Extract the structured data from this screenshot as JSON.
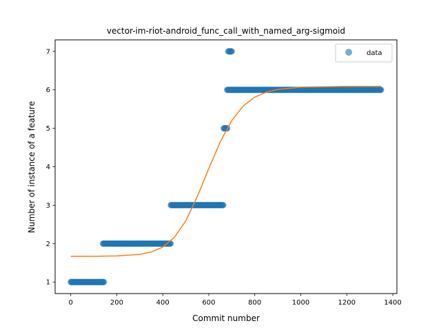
{
  "chart_data": {
    "type": "scatter",
    "title": "vector-im-riot-android_func_call_with_named_arg-sigmoid",
    "xlabel": "Commit number",
    "ylabel": "Number of instance of a feature",
    "xlim": [
      -68,
      1418
    ],
    "ylim": [
      0.7,
      7.3
    ],
    "xticks": [
      0,
      200,
      400,
      600,
      800,
      1000,
      1200,
      1400
    ],
    "yticks": [
      1,
      2,
      3,
      4,
      5,
      6,
      7
    ],
    "grid": false,
    "legend": {
      "position": "top-right",
      "entries": [
        "data"
      ]
    },
    "colors": {
      "data": "#1f77b4",
      "fit": "#ff7f0e"
    },
    "series": [
      {
        "name": "data",
        "kind": "points",
        "segments": [
          {
            "x_start": 0,
            "x_end": 145,
            "y": 1
          },
          {
            "x_start": 140,
            "x_end": 435,
            "y": 2
          },
          {
            "x_start": 435,
            "x_end": 665,
            "y": 3
          },
          {
            "x_start": 665,
            "x_end": 680,
            "y": 5
          },
          {
            "x_start": 685,
            "x_end": 700,
            "y": 7
          },
          {
            "x_start": 680,
            "x_end": 1350,
            "y": 6
          }
        ]
      },
      {
        "name": "",
        "kind": "line",
        "x": [
          0,
          100,
          200,
          300,
          350,
          400,
          450,
          500,
          550,
          600,
          650,
          700,
          750,
          800,
          850,
          900,
          1000,
          1100,
          1200,
          1350
        ],
        "y": [
          1.67,
          1.67,
          1.68,
          1.72,
          1.78,
          1.91,
          2.16,
          2.59,
          3.22,
          3.95,
          4.65,
          5.2,
          5.58,
          5.81,
          5.94,
          6.01,
          6.07,
          6.08,
          6.09,
          6.09
        ]
      }
    ]
  }
}
